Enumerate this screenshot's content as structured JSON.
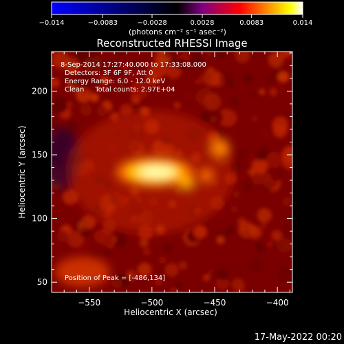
{
  "chart_data": {
    "type": "heatmap",
    "title": "Reconstructed RHESSI Image",
    "xlabel": "Heliocentric X (arcsec)",
    "ylabel": "Heliocentric Y (arcsec)",
    "xlim": [
      -580,
      -388
    ],
    "ylim": [
      42,
      231
    ],
    "xticks": [
      -550,
      -500,
      -450,
      -400
    ],
    "yticks": [
      50,
      100,
      150,
      200
    ],
    "colorbar": {
      "range": [
        -0.014,
        0.014
      ],
      "ticks": [
        "-0.014",
        "-0.0083",
        "-0.0028",
        "0.0028",
        "0.0083",
        "0.014"
      ],
      "label": "(photons cm⁻² s⁻¹ asec⁻²)",
      "colors": [
        "#0000ff",
        "#000000",
        "#800080",
        "#ff0000",
        "#ff8000",
        "#ffff00",
        "#ffffff"
      ]
    },
    "annotations": [
      "8-Sep-2014 17:27:40.000 to 17:33:08.000",
      "Detectors: 3F 6F 9F, Att 0",
      "Energy Range: 6.0 - 12.0 keV",
      "Clean     Total counts: 2.97E+04",
      "Position of Peak = [-486,134]"
    ],
    "peak": {
      "x": -486,
      "y": 134
    }
  },
  "footer": {
    "timestamp": "17-May-2022 00:20"
  }
}
